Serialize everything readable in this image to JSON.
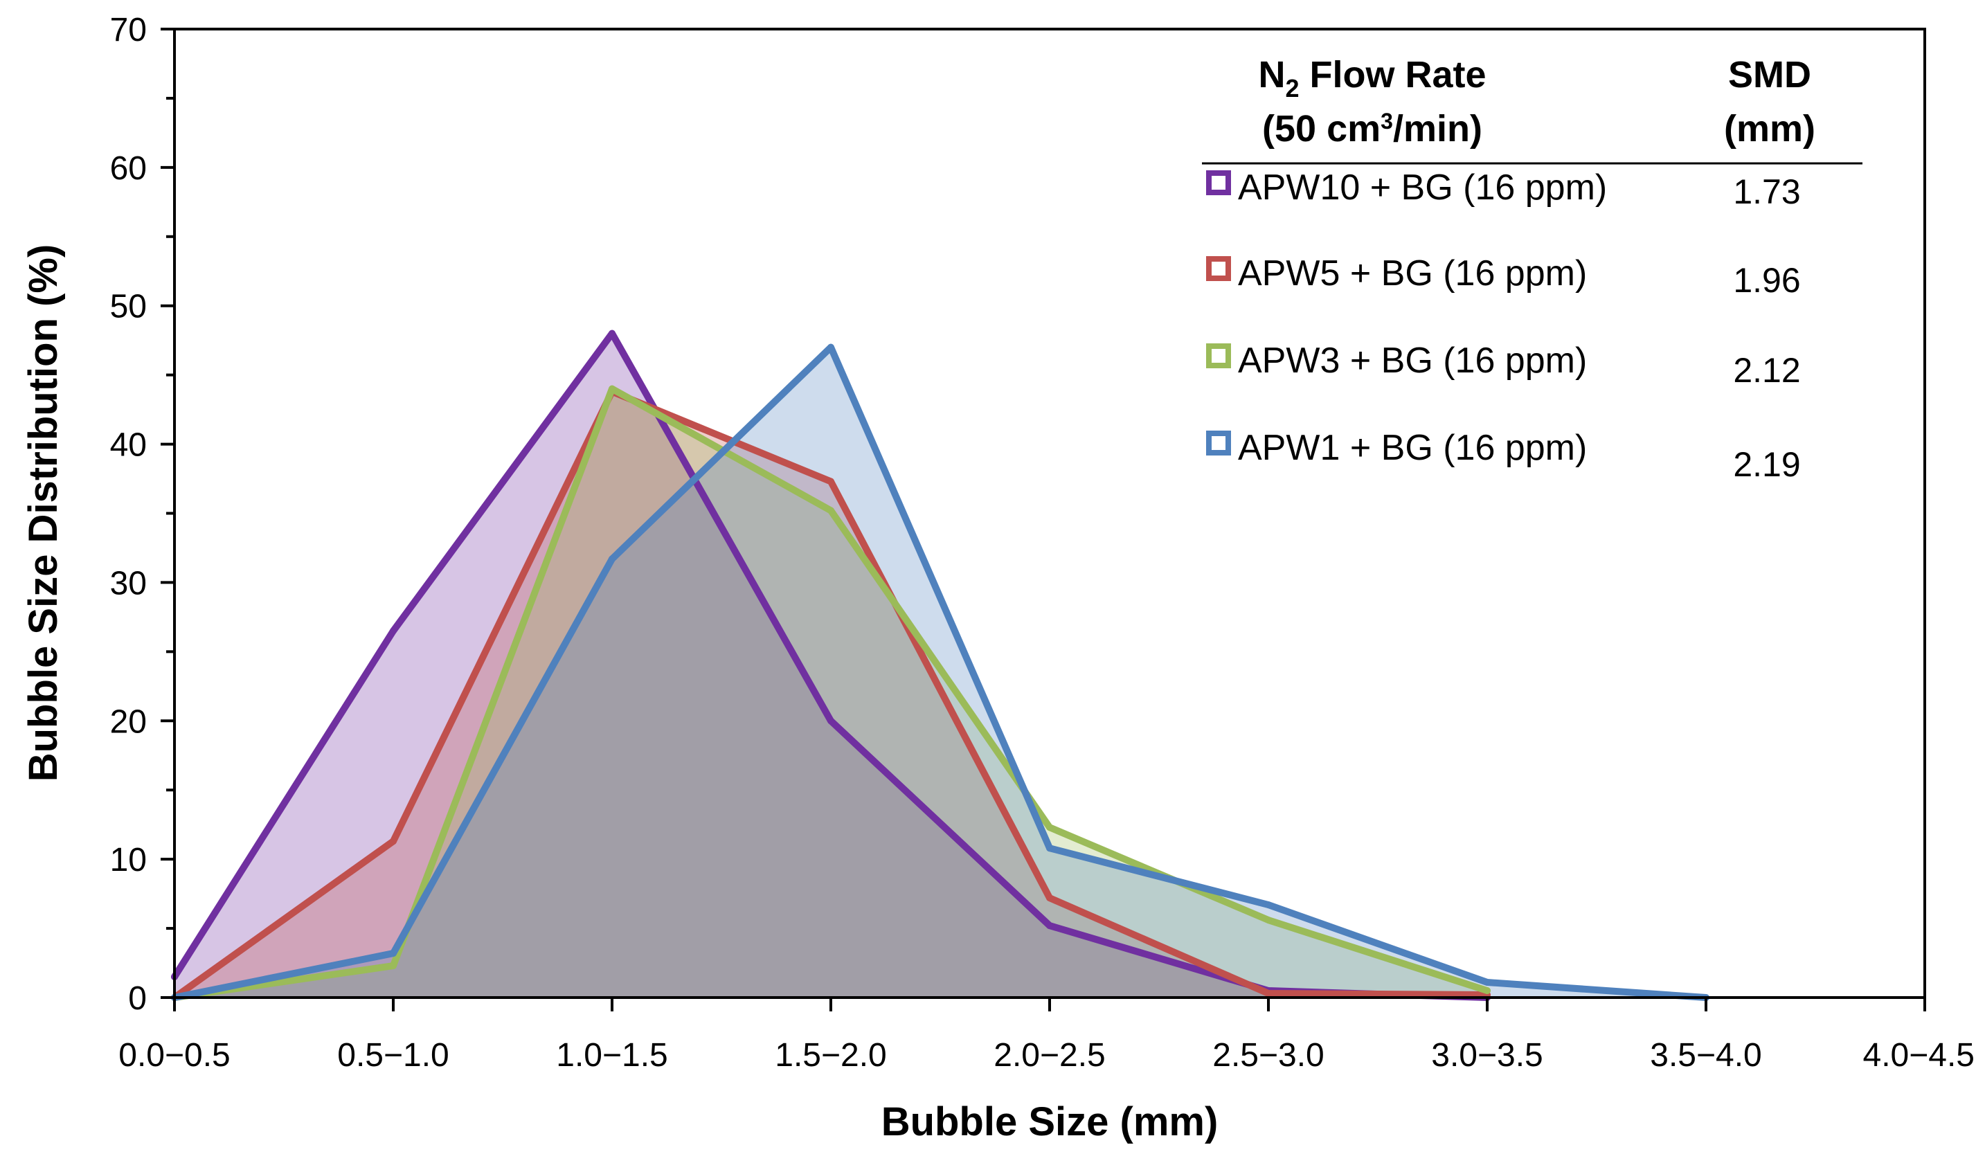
{
  "chart_data": {
    "type": "area",
    "xlabel": "Bubble Size (mm)",
    "ylabel": "Bubble Size Distribution (%)",
    "categories": [
      "0.0−0.5",
      "0.5−1.0",
      "1.0−1.5",
      "1.5−2.0",
      "2.0−2.5",
      "2.5−3.0",
      "3.0−3.5",
      "3.5−4.0",
      "4.0−4.5"
    ],
    "ylim": [
      0,
      70
    ],
    "yticks": [
      "0",
      "10",
      "20",
      "30",
      "40",
      "50",
      "60",
      "70"
    ],
    "grid": false,
    "legend": {
      "position": "top-right",
      "header_flow": "N",
      "header_flow_sub": "2",
      "header_flow_rest": " Flow Rate",
      "header_rate_pre": "(50 cm",
      "header_rate_sup": "3",
      "header_rate_post": "/min)",
      "header_smd": "SMD",
      "header_smd_unit": "(mm)"
    },
    "series": [
      {
        "name": "APW10 + BG (16 ppm)",
        "smd": "1.73",
        "color": "#7030A0",
        "fill": "#D9C7E6",
        "values": [
          1.5,
          26.5,
          48,
          20,
          5.2,
          0.5,
          0,
          null,
          null
        ]
      },
      {
        "name": "APW5 + BG (16 ppm)",
        "smd": "1.96",
        "color": "#C0504D",
        "fill": "#D9A6A3",
        "values": [
          0,
          11.3,
          43.8,
          37.3,
          7.2,
          0.3,
          0.2,
          null,
          null
        ]
      },
      {
        "name": "APW3 + BG (16 ppm)",
        "smd": "2.12",
        "color": "#9BBB59",
        "fill": "#C4D3A6",
        "values": [
          0,
          2.3,
          44,
          35.2,
          12.3,
          5.6,
          0.5,
          null,
          null
        ]
      },
      {
        "name": "APW1 + BG (16 ppm)",
        "smd": "2.19",
        "color": "#4F81BD",
        "fill": "#B8CCE4",
        "values": [
          0,
          3.2,
          31.7,
          47,
          10.8,
          6.7,
          1.1,
          0,
          null
        ]
      }
    ]
  }
}
